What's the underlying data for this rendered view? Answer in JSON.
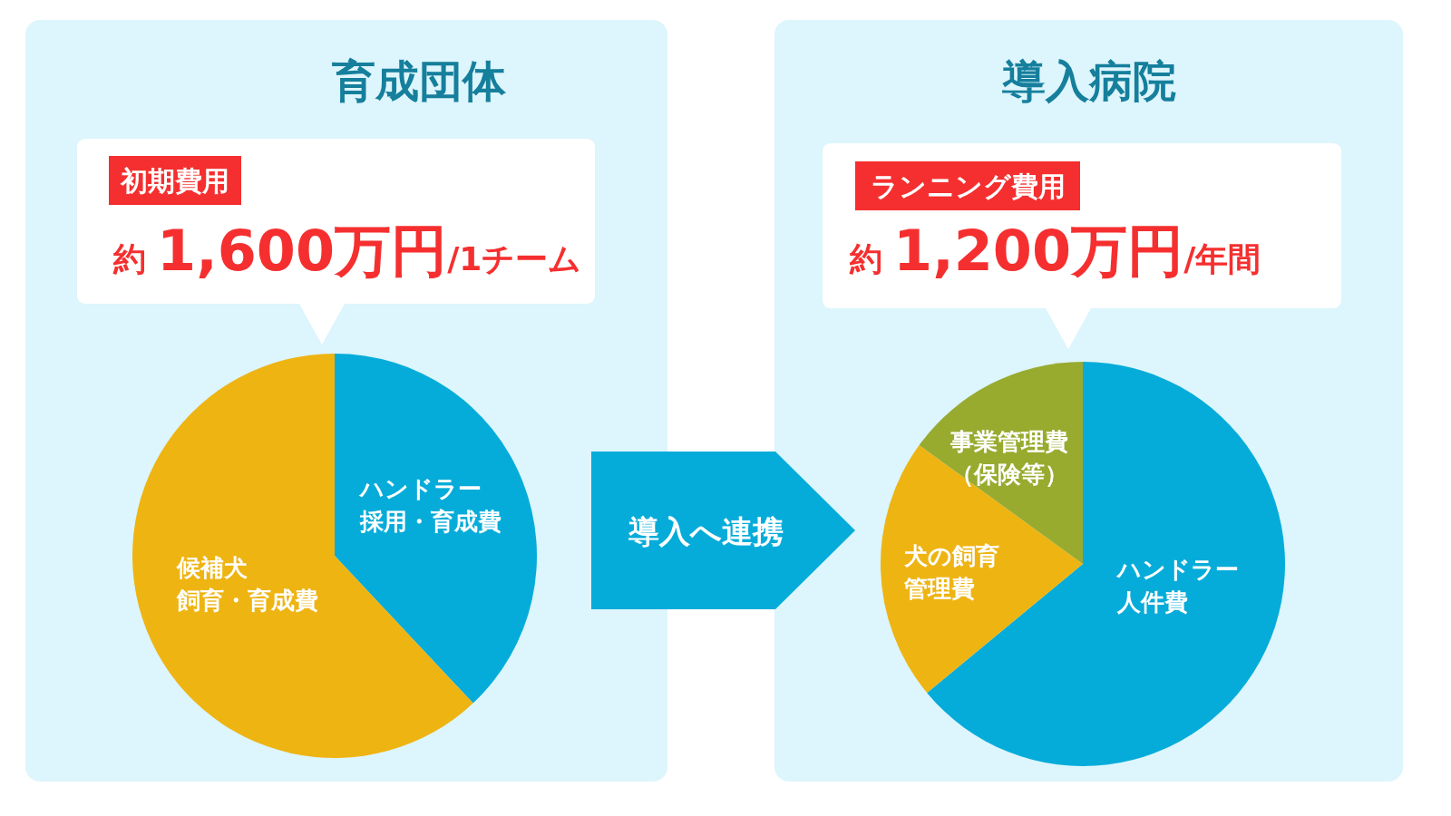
{
  "chart_data": [
    {
      "type": "pie",
      "title": "育成団体",
      "categories": [
        "ハンドラー採用・育成費",
        "候補犬飼育・育成費"
      ],
      "values": [
        38,
        62
      ],
      "colors": [
        "#06acd9",
        "#eeb412"
      ],
      "annotations": [
        "初期費用",
        "約",
        "1,600万円",
        "/1チーム"
      ]
    },
    {
      "type": "pie",
      "title": "導入病院",
      "categories": [
        "ハンドラー人件費",
        "犬の飼育管理費",
        "事業管理費（保険等）"
      ],
      "values": [
        64,
        21,
        15
      ],
      "colors": [
        "#06acd9",
        "#eeb412",
        "#98ab2f"
      ],
      "annotations": [
        "ランニング費用",
        "約",
        "1,200万円",
        "/年間",
        "導入へ連携"
      ]
    }
  ]
}
